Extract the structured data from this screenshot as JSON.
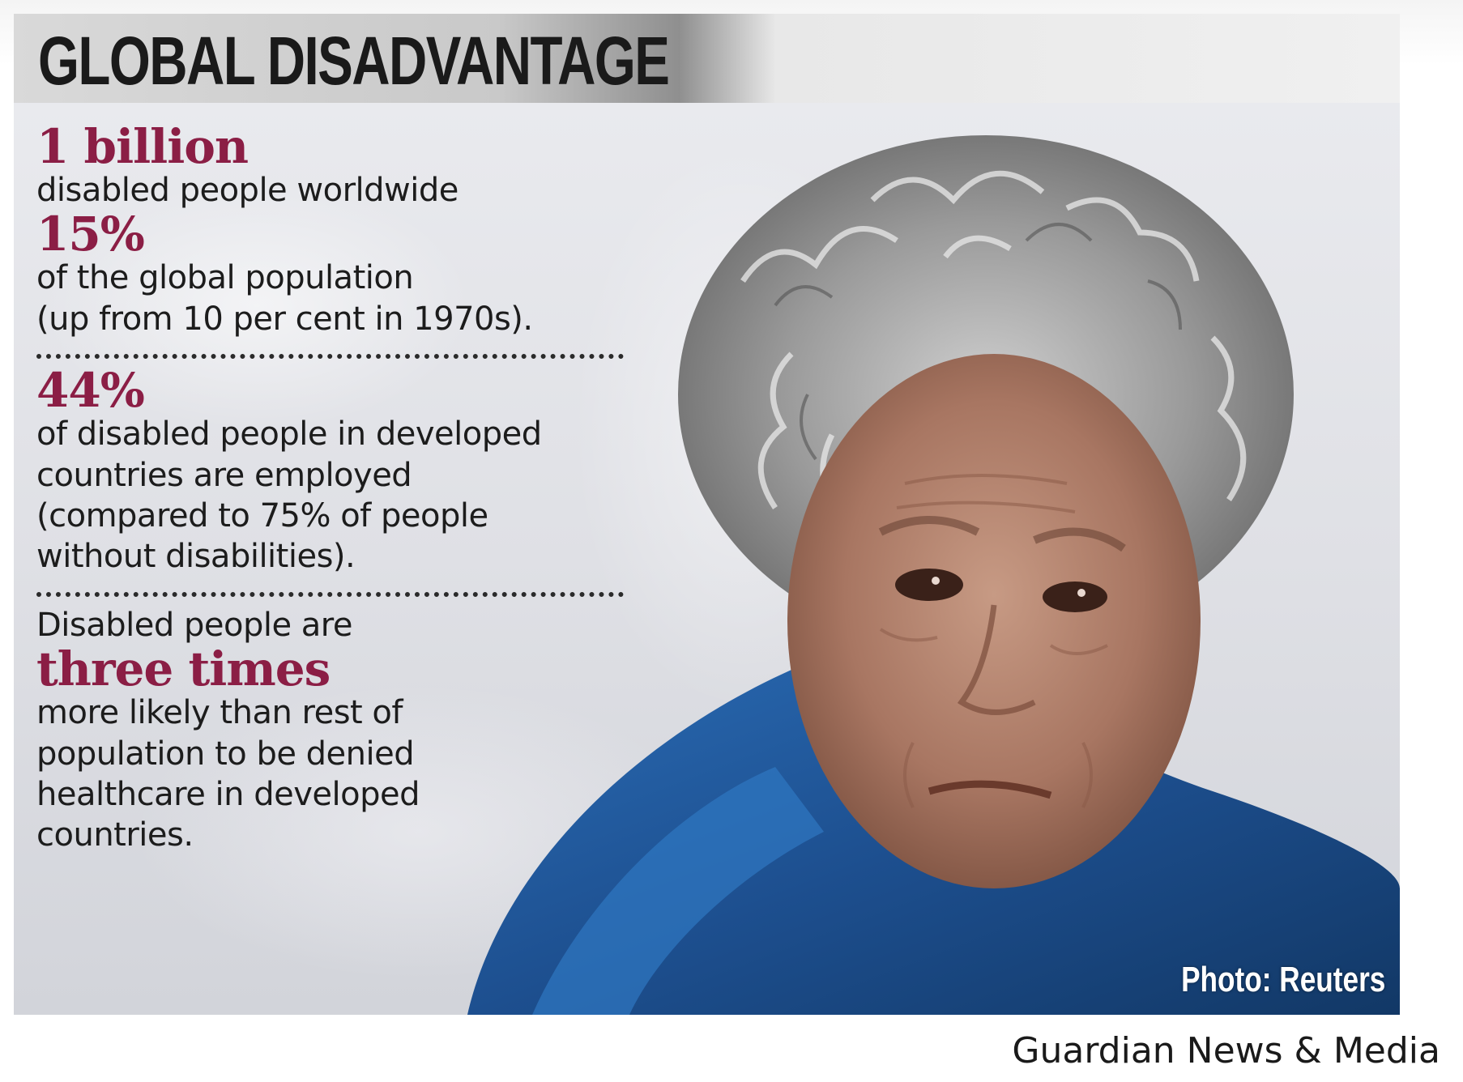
{
  "infographic": {
    "title": "GLOBAL DISADVANTAGE",
    "stats": [
      {
        "figure": "1 billion",
        "lines": [
          "disabled people worldwide"
        ]
      },
      {
        "figure": "15%",
        "lines": [
          "of the global population",
          "(up from 10 per cent in 1970s)."
        ]
      },
      {
        "figure": "44%",
        "lines": [
          "of disabled people in developed",
          "countries are employed",
          "(compared to 75% of people",
          "without disabilities)."
        ]
      },
      {
        "intro": "Disabled people are",
        "figure": "three times",
        "lines": [
          "more likely than rest of",
          "population to be denied",
          "healthcare in developed",
          "countries."
        ]
      }
    ],
    "photo_credit": "Photo: Reuters",
    "photo_subject": "elderly woman with grey curly hair in a blue hooded top, lying on a white pillow"
  },
  "source_caption": "Guardian News & Media",
  "colors": {
    "figure_color": "#8b1e45",
    "text_color": "#1c1c1c",
    "top_color": "#1f5fa8"
  }
}
